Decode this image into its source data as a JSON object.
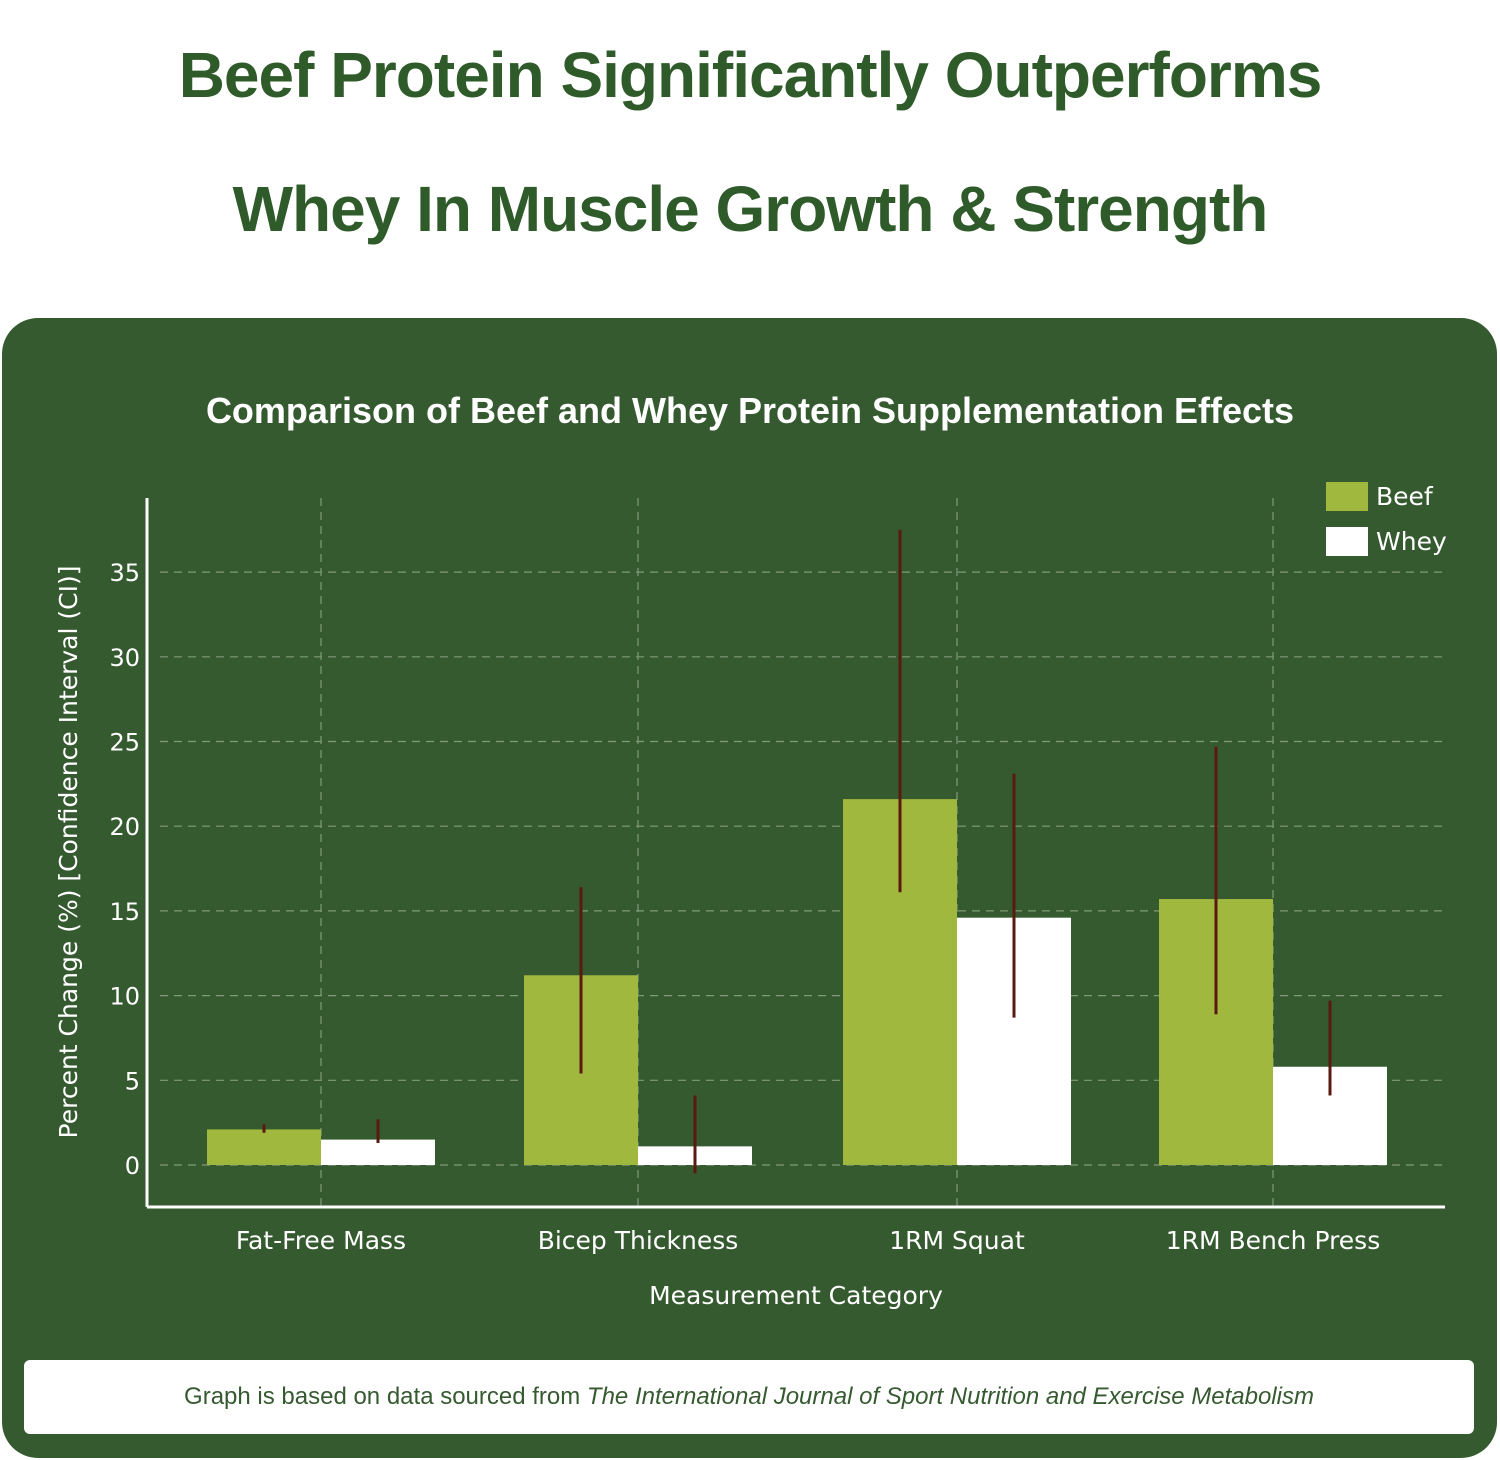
{
  "headline": {
    "line1": "Beef Protein Significantly Outperforms",
    "line2": "Whey In Muscle Growth & Strength"
  },
  "colors": {
    "panel": "#365a30",
    "beef": "#a0b83e",
    "whey": "#ffffff",
    "error_bar": "#5a1a10",
    "headline": "#2f5a2a"
  },
  "chart_data": {
    "type": "bar",
    "title": "Comparison of Beef and Whey Protein Supplementation Effects",
    "xlabel": "Measurement Category",
    "ylabel": "Percent Change (%) [Confidence Interval (CI)]",
    "categories": [
      "Fat-Free Mass",
      "Bicep Thickness",
      "1RM Squat",
      "1RM Bench Press"
    ],
    "yticks": [
      0,
      5,
      10,
      15,
      20,
      25,
      30,
      35
    ],
    "grid": true,
    "legend": "top-right",
    "series": [
      {
        "name": "Beef",
        "values": [
          2.1,
          11.2,
          21.6,
          15.7
        ],
        "ci_low": [
          1.9,
          5.4,
          16.1,
          8.9
        ],
        "ci_high": [
          2.4,
          16.4,
          37.5,
          24.7
        ]
      },
      {
        "name": "Whey",
        "values": [
          1.5,
          1.1,
          14.6,
          5.8
        ],
        "ci_low": [
          1.3,
          -0.5,
          8.7,
          4.1
        ],
        "ci_high": [
          2.7,
          4.1,
          23.1,
          9.7
        ]
      }
    ]
  },
  "footer": {
    "prefix": "Graph is based on data sourced from ",
    "source": "The International Journal of Sport Nutrition and Exercise Metabolism"
  }
}
